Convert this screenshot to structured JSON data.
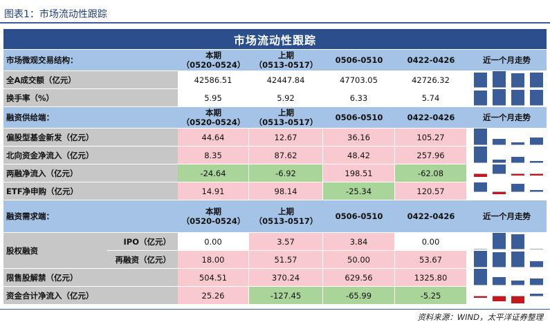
{
  "figure_title": "图表1：市场流动性跟踪",
  "banner_title": "市场流动性跟踪",
  "source": "资料来源：WIND，太平洋证券整理",
  "colors": {
    "positive_bar": "#3a5d9a",
    "negative_bar": "#c8161d",
    "pink": "#f8c9cf",
    "green": "#a9d49a"
  },
  "period_headers": [
    {
      "line1": "本期",
      "line2": "（0520-0524）"
    },
    {
      "line1": "上期",
      "line2": "（0513-0517）"
    },
    {
      "line1": "0506-0510",
      "line2": ""
    },
    {
      "line1": "0422-0426",
      "line2": ""
    }
  ],
  "trend_header": "近一个月走势",
  "sections": [
    {
      "title": "市场微观交易结构：",
      "rows": [
        {
          "label": "全A成交额（亿元）",
          "values": [
            "42586.51",
            "42447.84",
            "47703.05",
            "42726.32"
          ],
          "nums": [
            42586.51,
            42447.84,
            47703.05,
            42726.32
          ],
          "fills": [
            "white",
            "white",
            "white",
            "white"
          ],
          "label_bg": "gray"
        },
        {
          "label": "换手率（%）",
          "values": [
            "5.95",
            "5.92",
            "6.33",
            "5.74"
          ],
          "nums": [
            5.95,
            5.92,
            6.33,
            5.74
          ],
          "fills": [
            "white",
            "white",
            "white",
            "white"
          ],
          "label_bg": "gray"
        }
      ]
    },
    {
      "title": "融资供给端：",
      "rows": [
        {
          "label": "偏股型基金新发（亿元）",
          "values": [
            "44.64",
            "12.67",
            "36.16",
            "105.27"
          ],
          "nums": [
            44.64,
            12.67,
            36.16,
            105.27
          ],
          "fills": [
            "pink",
            "pink",
            "pink",
            "pink"
          ],
          "label_bg": "gray"
        },
        {
          "label": "北向资金净流入（亿元）",
          "values": [
            "8.35",
            "87.62",
            "48.42",
            "257.96"
          ],
          "nums": [
            8.35,
            87.62,
            48.42,
            257.96
          ],
          "fills": [
            "pink",
            "pink",
            "pink",
            "pink"
          ],
          "label_bg": "gray"
        },
        {
          "label": "两融净流入（亿元）",
          "values": [
            "-24.64",
            "-6.92",
            "198.51",
            "-62.08"
          ],
          "nums": [
            -24.64,
            -6.92,
            198.51,
            -62.08
          ],
          "fills": [
            "green",
            "green",
            "pink",
            "green"
          ],
          "label_bg": "gray"
        },
        {
          "label": "ETF净申购（亿元）",
          "values": [
            "14.91",
            "98.14",
            "-25.34",
            "120.57"
          ],
          "nums": [
            14.91,
            98.14,
            -25.34,
            120.57
          ],
          "fills": [
            "pink",
            "pink",
            "green",
            "pink"
          ],
          "label_bg": "gray"
        }
      ]
    },
    {
      "title": "融资需求端：",
      "group_label": "股权融资",
      "rows": [
        {
          "label": "IPO（亿元）",
          "values": [
            "0.00",
            "3.57",
            "3.84",
            "0.00"
          ],
          "nums": [
            0.0,
            3.57,
            3.84,
            0.0
          ],
          "fills": [
            "white",
            "pink",
            "pink",
            "white"
          ],
          "label_bg": "gray",
          "sub": true
        },
        {
          "label": "再融资（亿元）",
          "values": [
            "18.00",
            "51.57",
            "50.00",
            "53.67"
          ],
          "nums": [
            18.0,
            51.57,
            50.0,
            53.67
          ],
          "fills": [
            "pink",
            "pink",
            "pink",
            "pink"
          ],
          "label_bg": "gray",
          "sub": true
        },
        {
          "label": "限售股解禁（亿元）",
          "values": [
            "504.51",
            "370.24",
            "629.56",
            "1325.80"
          ],
          "nums": [
            504.51,
            370.24,
            629.56,
            1325.8
          ],
          "fills": [
            "pink",
            "pink",
            "pink",
            "pink"
          ],
          "label_bg": "gray"
        },
        {
          "label": "资金合计净流入（亿元）",
          "values": [
            "25.26",
            "-127.45",
            "-65.99",
            "-5.25"
          ],
          "nums": [
            25.26,
            -127.45,
            -65.99,
            -5.25
          ],
          "fills": [
            "pink",
            "green",
            "green",
            "green"
          ],
          "label_bg": "gray"
        }
      ]
    }
  ]
}
